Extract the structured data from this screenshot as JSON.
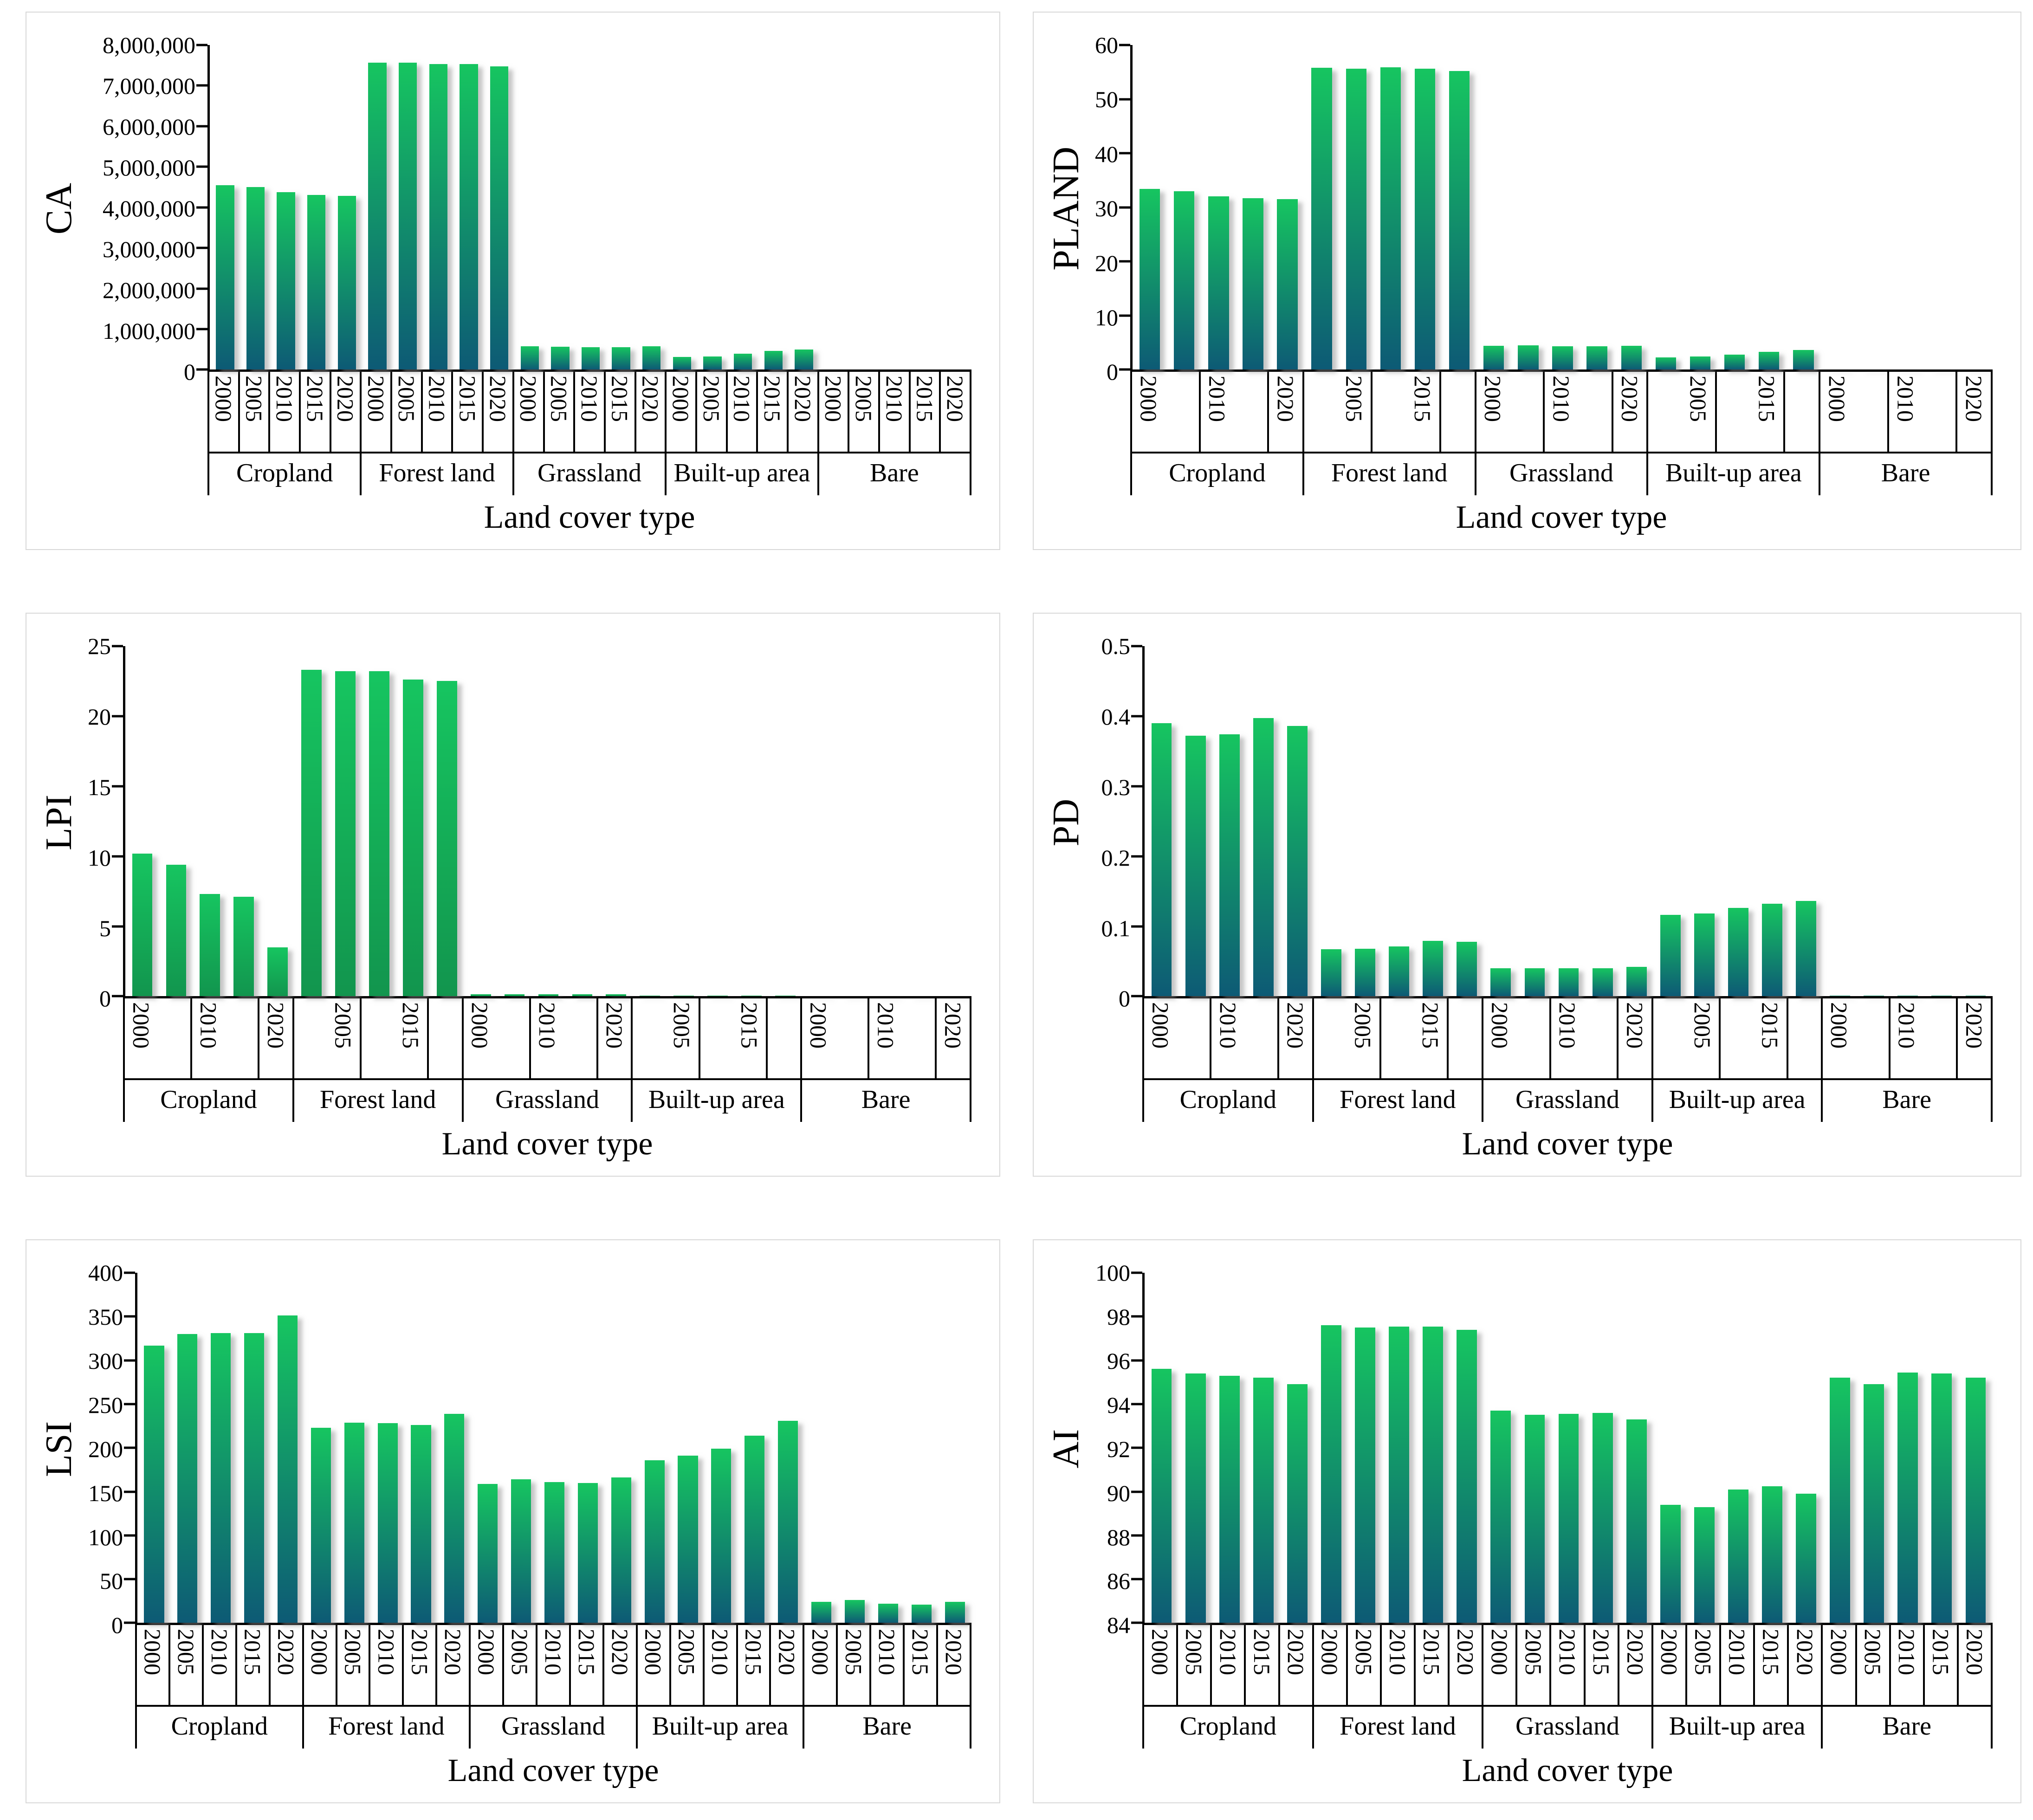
{
  "page": {
    "background": "#ffffff"
  },
  "colors": {
    "bar_top": "#16c560",
    "bar_bottom_blue": "#0d5a75",
    "bar_bottom_green": "#12954e",
    "card_border": "#d8d8d8",
    "axis": "#000000",
    "shadow": "#8c8c8c",
    "text": "#000000"
  },
  "categories": [
    "Cropland",
    "Forest land",
    "Grassland",
    "Built-up area",
    "Bare"
  ],
  "years": [
    "2000",
    "2005",
    "2010",
    "2015",
    "2020"
  ],
  "chart_data": [
    {
      "type": "bar",
      "metric": "CA",
      "ylabel": "CA",
      "xlabel": "Land cover type",
      "ylim": [
        0,
        8000000
      ],
      "gradient": "blue",
      "xtick_mode": "all",
      "ytick_values": [
        0,
        1000000,
        2000000,
        3000000,
        4000000,
        5000000,
        6000000,
        7000000,
        8000000
      ],
      "ytick_labels": [
        "0",
        "1,000,000",
        "2,000,000",
        "3,000,000",
        "4,000,000",
        "5,000,000",
        "6,000,000",
        "7,000,000",
        "8,000,000"
      ],
      "categories": [
        "Cropland",
        "Forest land",
        "Grassland",
        "Built-up area",
        "Bare"
      ],
      "series": [
        {
          "name": "Cropland",
          "values": [
            4550000,
            4500000,
            4370000,
            4310000,
            4280000
          ]
        },
        {
          "name": "Forest land",
          "values": [
            7560000,
            7560000,
            7530000,
            7530000,
            7470000
          ]
        },
        {
          "name": "Grassland",
          "values": [
            575000,
            570000,
            550000,
            555000,
            580000
          ]
        },
        {
          "name": "Built-up area",
          "values": [
            310000,
            320000,
            390000,
            460000,
            500000
          ]
        },
        {
          "name": "Bare",
          "values": [
            8000,
            8000,
            9000,
            9000,
            10000
          ]
        }
      ],
      "xtick_display": [
        [
          "2000",
          "2005",
          "2010",
          "2015",
          "2020"
        ],
        [
          "2000",
          "2005",
          "2010",
          "2015",
          "2020"
        ],
        [
          "2000",
          "2005",
          "2010",
          "2015",
          "2020"
        ],
        [
          "2000",
          "2005",
          "2010",
          "2015",
          "2020"
        ],
        [
          "2000",
          "2005",
          "2010",
          "2015",
          "2020"
        ]
      ]
    },
    {
      "type": "bar",
      "metric": "PLAND",
      "ylabel": "PLAND",
      "xlabel": "Land cover type",
      "ylim": [
        0,
        60
      ],
      "gradient": "blue",
      "xtick_mode": "alt",
      "ytick_values": [
        0,
        10,
        20,
        30,
        40,
        50,
        60
      ],
      "ytick_labels": [
        "0",
        "10",
        "20",
        "30",
        "40",
        "50",
        "60"
      ],
      "categories": [
        "Cropland",
        "Forest land",
        "Grassland",
        "Built-up area",
        "Bare"
      ],
      "series": [
        {
          "name": "Cropland",
          "values": [
            33.4,
            33.0,
            32.0,
            31.7,
            31.5
          ]
        },
        {
          "name": "Forest land",
          "values": [
            55.8,
            55.6,
            55.9,
            55.6,
            55.2
          ]
        },
        {
          "name": "Grassland",
          "values": [
            4.4,
            4.5,
            4.3,
            4.3,
            4.4
          ]
        },
        {
          "name": "Built-up area",
          "values": [
            2.3,
            2.4,
            2.8,
            3.3,
            3.6
          ]
        },
        {
          "name": "Bare",
          "values": [
            0.06,
            0.06,
            0.07,
            0.07,
            0.07
          ]
        }
      ],
      "xtick_display": [
        [
          "2000",
          "",
          "2010",
          "",
          "2020"
        ],
        [
          "",
          "2005",
          "",
          "2015",
          ""
        ],
        [
          "2000",
          "",
          "2010",
          "",
          "2020"
        ],
        [
          "",
          "2005",
          "",
          "2015",
          ""
        ],
        [
          "2000",
          "",
          "2010",
          "",
          "2020"
        ]
      ]
    },
    {
      "type": "bar",
      "metric": "LPI",
      "ylabel": "LPI",
      "xlabel": "Land cover type",
      "ylim": [
        0,
        25
      ],
      "gradient": "green",
      "xtick_mode": "alt",
      "ytick_values": [
        0,
        5,
        10,
        15,
        20,
        25
      ],
      "ytick_labels": [
        "0",
        "5",
        "10",
        "15",
        "20",
        "25"
      ],
      "categories": [
        "Cropland",
        "Forest land",
        "Grassland",
        "Built-up area",
        "Bare"
      ],
      "series": [
        {
          "name": "Cropland",
          "values": [
            10.2,
            9.4,
            7.3,
            7.1,
            3.5
          ]
        },
        {
          "name": "Forest land",
          "values": [
            23.3,
            23.2,
            23.2,
            22.6,
            22.5
          ]
        },
        {
          "name": "Grassland",
          "values": [
            0.15,
            0.15,
            0.15,
            0.15,
            0.15
          ]
        },
        {
          "name": "Built-up area",
          "values": [
            0.04,
            0.04,
            0.05,
            0.05,
            0.06
          ]
        },
        {
          "name": "Bare",
          "values": [
            0.01,
            0.01,
            0.01,
            0.01,
            0.01
          ]
        }
      ],
      "xtick_display": [
        [
          "2000",
          "",
          "2010",
          "",
          "2020"
        ],
        [
          "",
          "2005",
          "",
          "2015",
          ""
        ],
        [
          "2000",
          "",
          "2010",
          "",
          "2020"
        ],
        [
          "",
          "2005",
          "",
          "2015",
          ""
        ],
        [
          "2000",
          "",
          "2010",
          "",
          "2020"
        ]
      ]
    },
    {
      "type": "bar",
      "metric": "PD",
      "ylabel": "PD",
      "xlabel": "Land cover type",
      "ylim": [
        0,
        0.5
      ],
      "gradient": "blue",
      "xtick_mode": "alt",
      "ytick_values": [
        0,
        0.1,
        0.2,
        0.3,
        0.4,
        0.5
      ],
      "ytick_labels": [
        "0",
        "0.1",
        "0.2",
        "0.3",
        "0.4",
        "0.5"
      ],
      "categories": [
        "Cropland",
        "Forest land",
        "Grassland",
        "Built-up area",
        "Bare"
      ],
      "series": [
        {
          "name": "Cropland",
          "values": [
            0.39,
            0.372,
            0.374,
            0.397,
            0.386
          ]
        },
        {
          "name": "Forest land",
          "values": [
            0.067,
            0.068,
            0.071,
            0.079,
            0.078
          ]
        },
        {
          "name": "Grassland",
          "values": [
            0.04,
            0.04,
            0.04,
            0.04,
            0.042
          ]
        },
        {
          "name": "Built-up area",
          "values": [
            0.116,
            0.118,
            0.126,
            0.132,
            0.136
          ]
        },
        {
          "name": "Bare",
          "values": [
            0.001,
            0.001,
            0.001,
            0.001,
            0.001
          ]
        }
      ],
      "xtick_display": [
        [
          "2000",
          "",
          "2010",
          "",
          "2020"
        ],
        [
          "",
          "2005",
          "",
          "2015",
          ""
        ],
        [
          "2000",
          "",
          "2010",
          "",
          "2020"
        ],
        [
          "",
          "2005",
          "",
          "2015",
          ""
        ],
        [
          "2000",
          "",
          "2010",
          "",
          "2020"
        ]
      ]
    },
    {
      "type": "bar",
      "metric": "LSI",
      "ylabel": "LSI",
      "xlabel": "Land cover type",
      "ylim": [
        0,
        400
      ],
      "gradient": "blue",
      "xtick_mode": "all",
      "ytick_values": [
        0,
        50,
        100,
        150,
        200,
        250,
        300,
        350,
        400
      ],
      "ytick_labels": [
        "0",
        "50",
        "100",
        "150",
        "200",
        "250",
        "300",
        "350",
        "400"
      ],
      "categories": [
        "Cropland",
        "Forest land",
        "Grassland",
        "Built-up area",
        "Bare"
      ],
      "series": [
        {
          "name": "Cropland",
          "values": [
            317,
            330,
            331,
            331,
            351
          ]
        },
        {
          "name": "Forest land",
          "values": [
            223,
            229,
            228,
            226,
            239
          ]
        },
        {
          "name": "Grassland",
          "values": [
            159,
            164,
            161,
            160,
            166
          ]
        },
        {
          "name": "Built-up area",
          "values": [
            186,
            191,
            199,
            214,
            231
          ]
        },
        {
          "name": "Bare",
          "values": [
            24,
            26,
            22,
            21,
            24
          ]
        }
      ],
      "xtick_display": [
        [
          "2000",
          "2005",
          "2010",
          "2015",
          "2020"
        ],
        [
          "2000",
          "2005",
          "2010",
          "2015",
          "2020"
        ],
        [
          "2000",
          "2005",
          "2010",
          "2015",
          "2020"
        ],
        [
          "2000",
          "2005",
          "2010",
          "2015",
          "2020"
        ],
        [
          "2000",
          "2005",
          "2010",
          "2015",
          "2020"
        ]
      ]
    },
    {
      "type": "bar",
      "metric": "AI",
      "ylabel": "AI",
      "xlabel": "Land cover type",
      "ylim": [
        84,
        100
      ],
      "gradient": "blue",
      "xtick_mode": "all",
      "ytick_values": [
        84,
        86,
        88,
        90,
        92,
        94,
        96,
        98,
        100
      ],
      "ytick_labels": [
        "84",
        "86",
        "88",
        "90",
        "92",
        "94",
        "96",
        "98",
        "100"
      ],
      "categories": [
        "Cropland",
        "Forest land",
        "Grassland",
        "Built-up area",
        "Bare"
      ],
      "series": [
        {
          "name": "Cropland",
          "values": [
            95.6,
            95.4,
            95.3,
            95.2,
            94.9
          ]
        },
        {
          "name": "Forest land",
          "values": [
            97.6,
            97.5,
            97.55,
            97.55,
            97.4
          ]
        },
        {
          "name": "Grassland",
          "values": [
            93.7,
            93.5,
            93.55,
            93.6,
            93.3
          ]
        },
        {
          "name": "Built-up area",
          "values": [
            89.4,
            89.3,
            90.1,
            90.25,
            89.9
          ]
        },
        {
          "name": "Bare",
          "values": [
            95.2,
            94.9,
            95.45,
            95.4,
            95.2
          ]
        }
      ],
      "xtick_display": [
        [
          "2000",
          "2005",
          "2010",
          "2015",
          "2020"
        ],
        [
          "2000",
          "2005",
          "2010",
          "2015",
          "2020"
        ],
        [
          "2000",
          "2005",
          "2010",
          "2015",
          "2020"
        ],
        [
          "2000",
          "2005",
          "2010",
          "2015",
          "2020"
        ],
        [
          "2000",
          "2005",
          "2010",
          "2015",
          "2020"
        ]
      ]
    }
  ]
}
